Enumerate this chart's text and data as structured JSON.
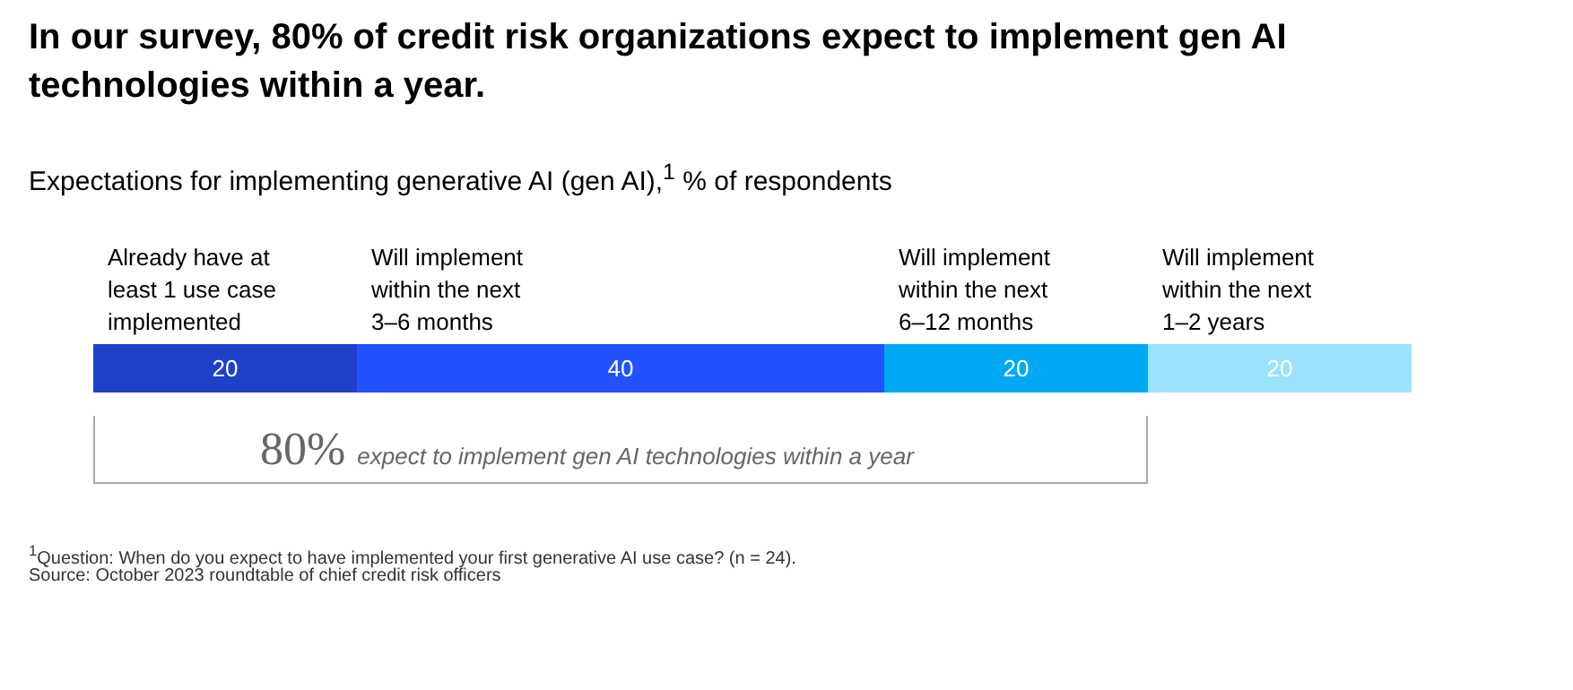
{
  "chart_data": {
    "type": "bar",
    "orientation": "horizontal",
    "stacked": true,
    "title": "In our survey, 80% of credit risk organizations expect to implement gen AI technologies within a year.",
    "subtitle": "Expectations for implementing generative AI (gen AI),$^{1}$ % of respondents",
    "categories": [
      null
    ],
    "series": [
      {
        "name": "Already have at least 1 use case implemented",
        "color": "#1f40c9",
        "values": [
          20
        ]
      },
      {
        "name": "Will implement within the next 3–6 months",
        "color": "#2251ff",
        "values": [
          40
        ]
      },
      {
        "name": "Will implement within the next 6–12 months",
        "color": "#00a9f4",
        "values": [
          20
        ]
      },
      {
        "name": "Will implement within the next 1–2 years",
        "color": "#99e3ff",
        "values": [
          20
        ]
      }
    ],
    "data_labels": true,
    "legend": false,
    "tick_labels": false,
    "annotations": [
      "80% expect to implement gen AI technologies within a year",
      "$^{1}$Question: When do you expect to have implemented your first generative AI use case? (n = 24).",
      "Source: October 2023 roundtable of chief credit risk officers"
    ]
  }
}
